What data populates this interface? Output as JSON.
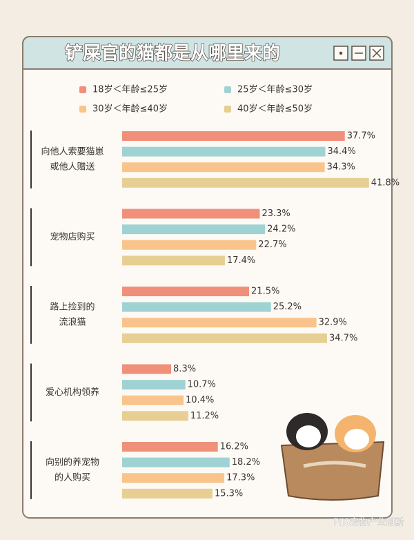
{
  "chart_data": {
    "type": "hbar",
    "title": "铲屎官的猫都是从哪里来的",
    "categories": [
      [
        "向他人索要猫崽",
        "或他人赠送"
      ],
      [
        "宠物店购买"
      ],
      [
        "路上捡到的",
        "流浪猫"
      ],
      [
        "爱心机构领养"
      ],
      [
        "向别的养宠物",
        "的人购买"
      ]
    ],
    "series": [
      {
        "name": "18岁＜年龄≤25岁",
        "color": "#f0907a",
        "values": [
          37.7,
          23.3,
          21.5,
          8.3,
          16.2
        ],
        "value_labels": [
          "37.7%",
          "23.3%",
          "21.5%",
          "8.3%",
          "16.2%"
        ]
      },
      {
        "name": "25岁＜年龄≤30岁",
        "color": "#9fd3d3",
        "values": [
          34.4,
          24.2,
          25.2,
          10.7,
          18.2
        ],
        "value_labels": [
          "34.4%",
          "24.2%",
          "25.2%",
          "10.7%",
          "18.2%"
        ]
      },
      {
        "name": "30岁＜年龄≤40岁",
        "color": "#f9c48b",
        "values": [
          34.3,
          22.7,
          32.9,
          10.4,
          17.3
        ],
        "value_labels": [
          "34.3%",
          "22.7%",
          "32.9%",
          "10.4%",
          "17.3%"
        ]
      },
      {
        "name": "40岁＜年龄≤50岁",
        "color": "#e7cf93",
        "values": [
          41.8,
          17.4,
          34.7,
          11.2,
          15.3
        ],
        "value_labels": [
          "41.8%",
          "17.4%",
          "34.7%",
          "11.2%",
          "15.3%"
        ]
      }
    ],
    "watermark": "PIIS宠物产业创新"
  }
}
